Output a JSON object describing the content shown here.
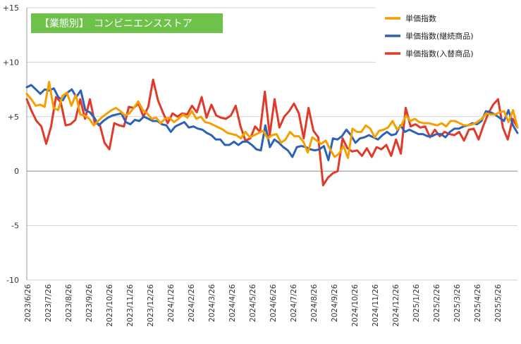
{
  "chart_data": {
    "type": "line",
    "title_badge": "【業態別】　コンビニエンスストア",
    "ylim": [
      -10,
      15
    ],
    "y_ticks": [
      {
        "value": 15,
        "label": "+15"
      },
      {
        "value": 10,
        "label": "+10"
      },
      {
        "value": 5,
        "label": "+5"
      },
      {
        "value": 0,
        "label": "0"
      },
      {
        "value": -5,
        "label": "-5"
      },
      {
        "value": -10,
        "label": "-10"
      }
    ],
    "x_tick_labels": [
      "2023/6/26",
      "2023/7/26",
      "2023/8/26",
      "2023/9/26",
      "2023/10/26",
      "2023/11/26",
      "2023/12/26",
      "2024/1/26",
      "2024/2/26",
      "2024/3/26",
      "2024/4/26",
      "2024/5/26",
      "2024/6/26",
      "2024/7/26",
      "2024/8/26",
      "2024/9/26",
      "2024/10/26",
      "2024/11/26",
      "2024/12/26",
      "2025/1/26",
      "2025/2/26",
      "2025/3/26",
      "2025/4/26",
      "2025/5/26"
    ],
    "grid": "horizontal",
    "legend_position": "top-right",
    "series": [
      {
        "name": "単価指数",
        "color": "#f5a000",
        "values": [
          7.1,
          6.6,
          6.0,
          6.1,
          5.9,
          8.2,
          5.8,
          5.6,
          6.9,
          7.2,
          6.0,
          7.0,
          5.2,
          5.1,
          4.8,
          4.2,
          4.6,
          5.0,
          5.3,
          5.6,
          5.8,
          5.5,
          5.1,
          5.3,
          5.8,
          6.4,
          5.6,
          5.3,
          4.8,
          4.9,
          4.4,
          4.8,
          4.9,
          4.5,
          4.8,
          5.2,
          4.9,
          5.5,
          4.8,
          5.0,
          4.5,
          4.4,
          4.2,
          4.0,
          3.8,
          3.5,
          3.4,
          3.3,
          3.0,
          3.6,
          3.1,
          3.3,
          3.5,
          3.7,
          3.0,
          3.3,
          3.4,
          2.6,
          2.9,
          3.6,
          3.2,
          3.2,
          2.7,
          1.7,
          3.1,
          2.8,
          2.5,
          2.8,
          2.0,
          1.3,
          1.6,
          2.3,
          1.2,
          3.9,
          3.6,
          3.6,
          4.2,
          3.9,
          3.1,
          3.7,
          3.8,
          4.0,
          4.6,
          3.8,
          4.2,
          5.1,
          4.6,
          4.8,
          4.5,
          4.4,
          4.4,
          4.3,
          4.2,
          4.4,
          4.1,
          4.6,
          4.6,
          4.4,
          4.2,
          4.2,
          4.3,
          4.5,
          4.8,
          5.3,
          5.2,
          5.2,
          5.4,
          5.5,
          4.5,
          5.6,
          4.0
        ]
      },
      {
        "name": "単価指数(継続商品)",
        "color": "#2e62b8",
        "values": [
          7.7,
          7.9,
          7.5,
          7.1,
          7.5,
          7.4,
          7.6,
          6.8,
          6.5,
          7.2,
          7.5,
          6.8,
          7.4,
          5.6,
          5.4,
          4.9,
          4.2,
          4.6,
          4.9,
          5.1,
          5.2,
          5.3,
          4.5,
          4.3,
          4.7,
          4.6,
          5.0,
          4.8,
          4.6,
          4.6,
          4.3,
          4.2,
          3.6,
          4.1,
          4.3,
          4.5,
          4.0,
          4.1,
          3.9,
          3.8,
          3.5,
          3.3,
          2.9,
          2.9,
          2.4,
          2.4,
          2.7,
          2.4,
          2.7,
          2.7,
          2.4,
          2.0,
          1.9,
          4.2,
          2.2,
          2.9,
          2.6,
          2.2,
          1.9,
          1.3,
          2.2,
          2.3,
          2.2,
          2.0,
          1.9,
          2.0,
          2.3,
          1.0,
          3.0,
          2.9,
          3.2,
          3.8,
          3.3,
          2.6,
          3.0,
          3.1,
          3.3,
          3.1,
          2.9,
          3.3,
          3.6,
          3.3,
          3.4,
          4.2,
          3.6,
          3.8,
          3.6,
          3.4,
          3.4,
          3.2,
          3.2,
          3.4,
          3.4,
          3.1,
          3.6,
          3.9,
          3.9,
          4.1,
          4.2,
          4.4,
          4.3,
          4.6,
          5.5,
          5.4,
          5.2,
          4.9,
          4.6,
          5.6,
          4.2,
          3.5
        ]
      },
      {
        "name": "単価指数(入替商品)",
        "color": "#e03a2a",
        "values": [
          6.6,
          5.5,
          4.6,
          4.1,
          2.5,
          4.1,
          6.8,
          6.3,
          4.2,
          4.3,
          4.7,
          6.6,
          4.8,
          6.6,
          4.4,
          4.3,
          2.6,
          2.0,
          4.4,
          4.2,
          4.1,
          5.9,
          5.8,
          6.2,
          5.0,
          5.9,
          8.4,
          6.5,
          5.4,
          4.4,
          5.3,
          5.0,
          5.3,
          5.2,
          6.0,
          5.4,
          6.8,
          4.9,
          6.1,
          5.1,
          4.9,
          4.8,
          5.1,
          6.0,
          4.1,
          2.8,
          3.0,
          4.1,
          3.6,
          7.3,
          3.3,
          6.6,
          4.0,
          5.0,
          5.5,
          6.2,
          5.3,
          3.0,
          5.8,
          3.7,
          3.1,
          -1.3,
          -0.6,
          -0.2,
          0.0,
          3.0,
          2.1,
          1.8,
          1.9,
          1.4,
          2.1,
          1.3,
          2.2,
          2.0,
          2.4,
          1.4,
          2.9,
          1.6,
          5.8,
          4.1,
          4.3,
          4.0,
          4.1,
          3.1,
          3.8,
          3.2,
          3.6,
          3.4,
          3.3,
          3.6,
          2.8,
          3.8,
          3.9,
          2.9,
          4.2,
          5.3,
          6.1,
          6.6,
          4.0,
          2.9,
          4.8,
          4.0
        ]
      }
    ]
  }
}
